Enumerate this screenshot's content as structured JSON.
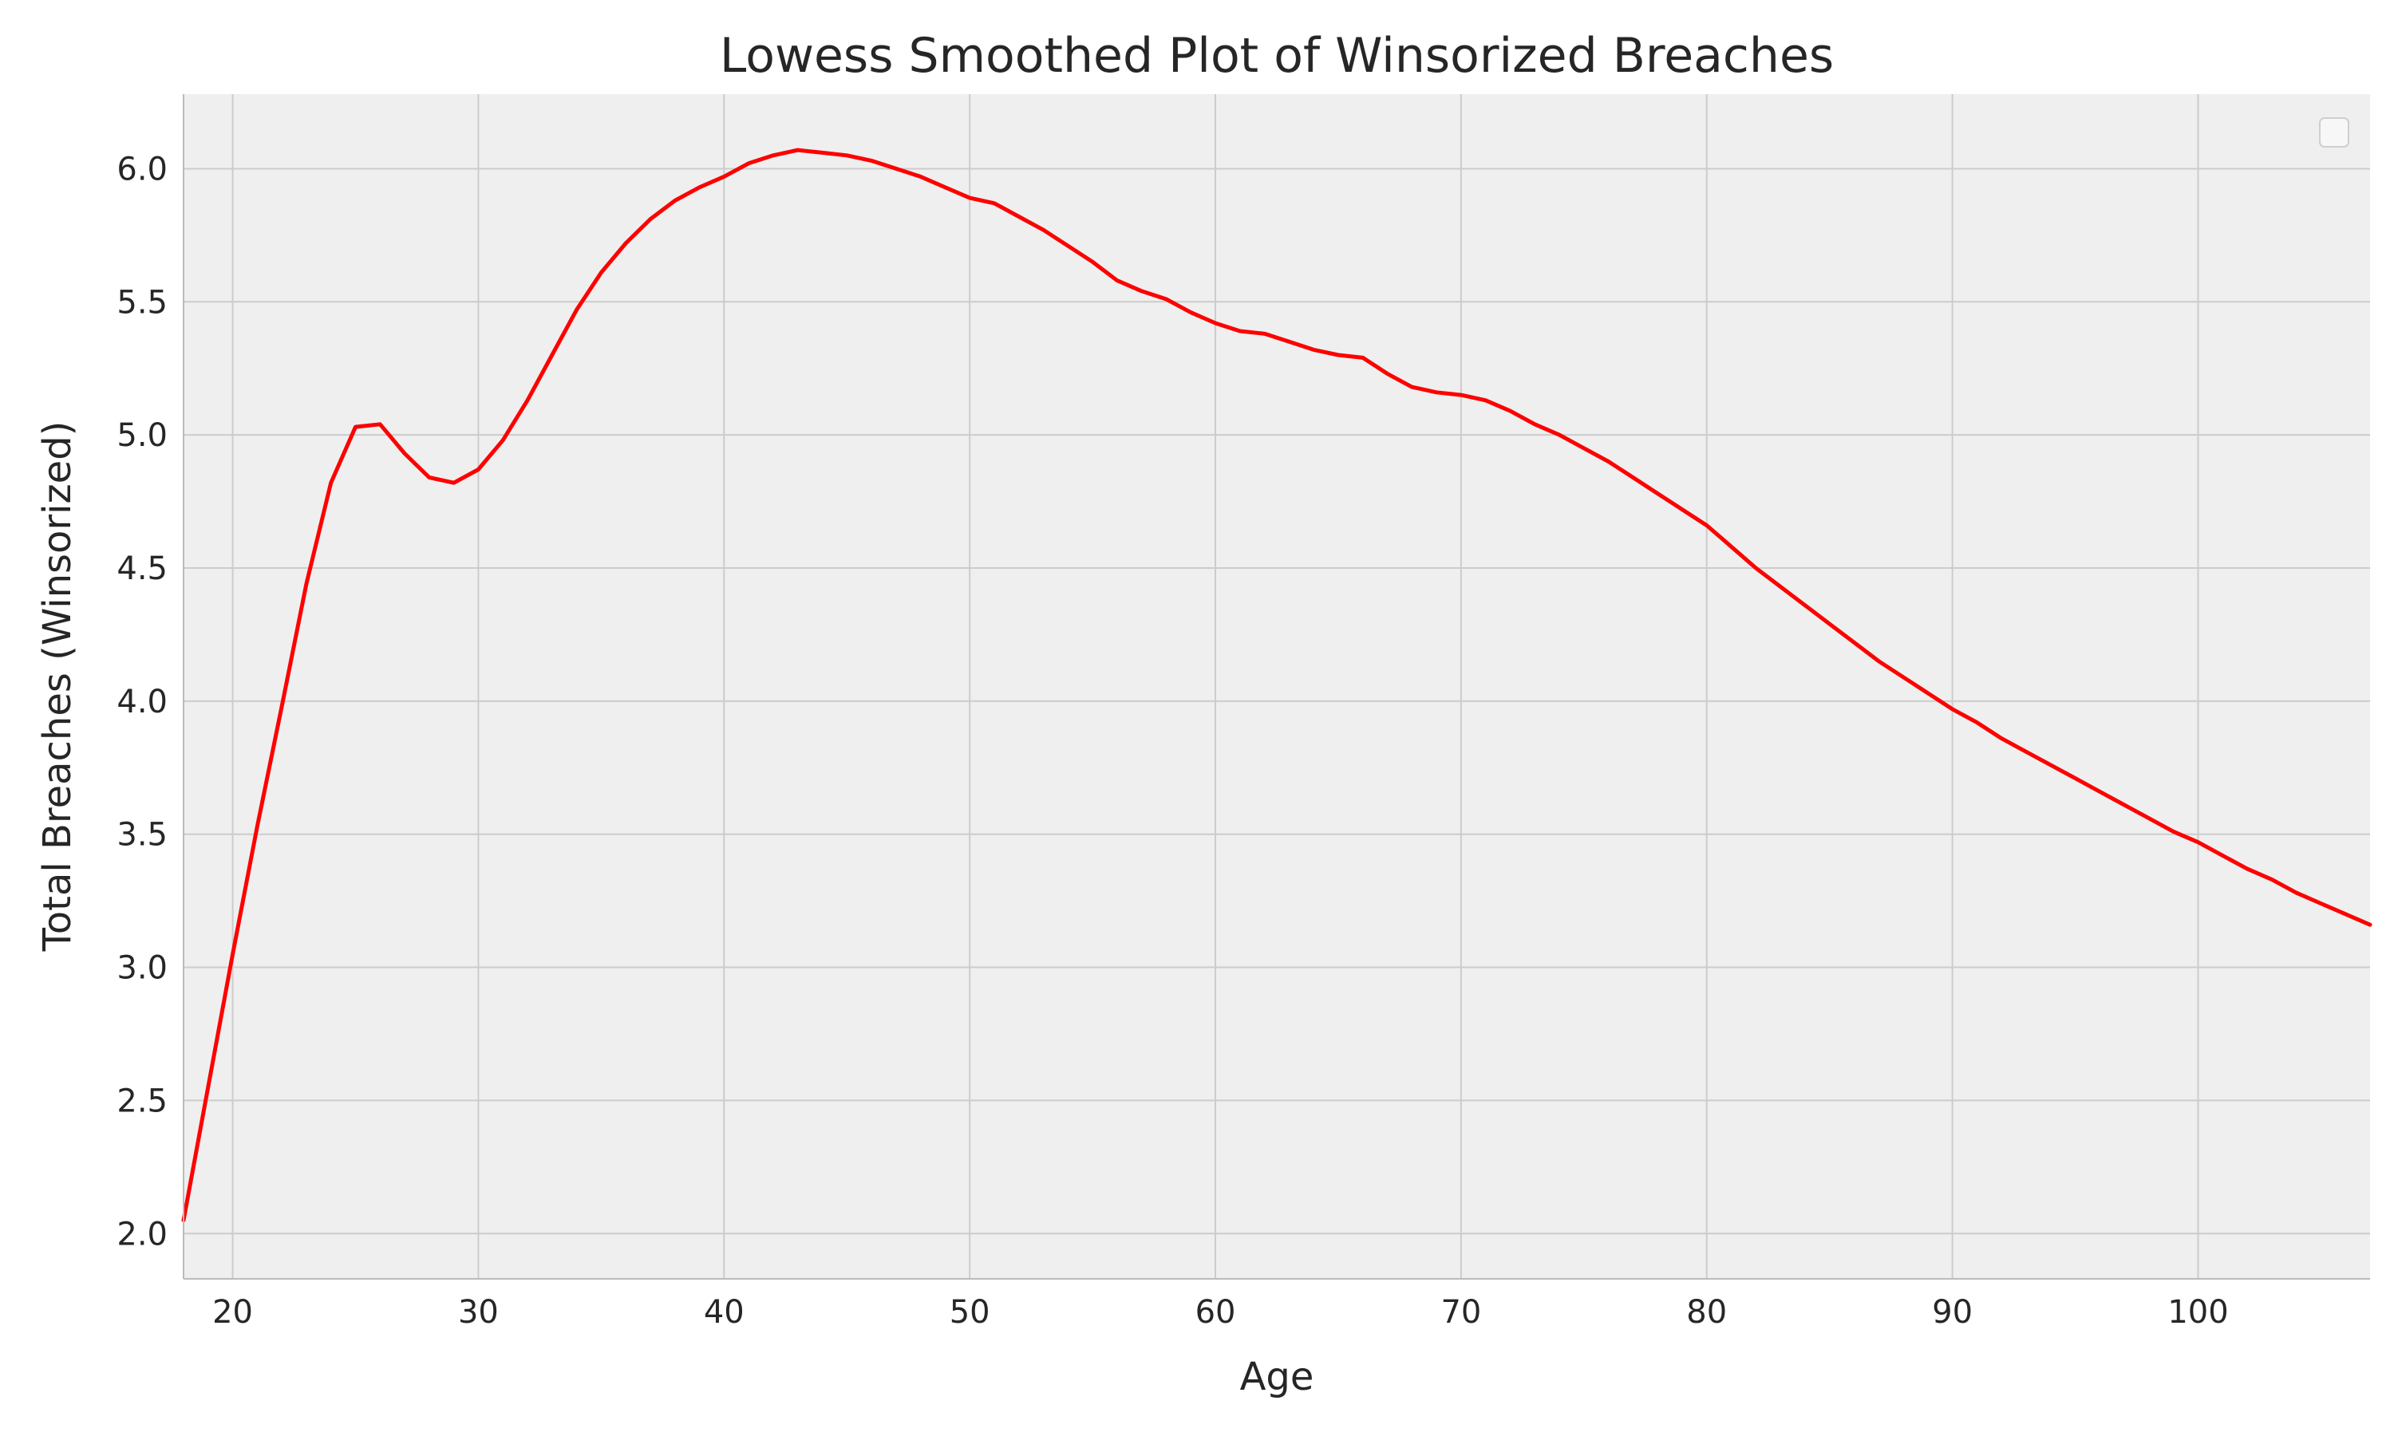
{
  "chart_data": {
    "type": "line",
    "title": "Lowess Smoothed Plot of Winsorized Breaches",
    "xlabel": "Age",
    "ylabel": "Total Breaches (Winsorized)",
    "xlim": [
      18,
      107
    ],
    "ylim": [
      1.83,
      6.28
    ],
    "x_ticks": [
      20,
      30,
      40,
      50,
      60,
      70,
      80,
      90,
      100
    ],
    "x_tick_labels": [
      "20",
      "30",
      "40",
      "50",
      "60",
      "70",
      "80",
      "90",
      "100"
    ],
    "y_ticks": [
      2.0,
      2.5,
      3.0,
      3.5,
      4.0,
      4.5,
      5.0,
      5.5,
      6.0
    ],
    "y_tick_labels": [
      "2.0",
      "2.5",
      "3.0",
      "3.5",
      "4.0",
      "4.5",
      "5.0",
      "5.5",
      "6.0"
    ],
    "grid": true,
    "legend": "top-right (empty)",
    "colors": {
      "line": "#ff0000",
      "plot_background": "#efefef",
      "grid": "#cccccc",
      "text": "#262626"
    },
    "series": [
      {
        "x": [
          18,
          19,
          20,
          21,
          22,
          23,
          24,
          25,
          26,
          27,
          28,
          29,
          30,
          31,
          32,
          33,
          34,
          35,
          36,
          37,
          38,
          39,
          40,
          41,
          42,
          43,
          44,
          45,
          46,
          47,
          48,
          49,
          50,
          51,
          52,
          53,
          54,
          55,
          56,
          57,
          58,
          59,
          60,
          61,
          62,
          63,
          64,
          65,
          66,
          67,
          68,
          69,
          70,
          71,
          72,
          73,
          74,
          75,
          76,
          77,
          78,
          79,
          80,
          81,
          82,
          83,
          84,
          85,
          86,
          87,
          88,
          89,
          90,
          91,
          92,
          93,
          94,
          95,
          96,
          97,
          98,
          99,
          100,
          101,
          102,
          103,
          104,
          105,
          106,
          107
        ],
        "y": [
          2.05,
          2.55,
          3.05,
          3.53,
          3.98,
          4.44,
          4.82,
          5.03,
          5.04,
          4.93,
          4.84,
          4.82,
          4.87,
          4.98,
          5.13,
          5.3,
          5.47,
          5.61,
          5.72,
          5.81,
          5.88,
          5.93,
          5.97,
          6.02,
          6.05,
          6.07,
          6.06,
          6.05,
          6.03,
          6.0,
          5.97,
          5.93,
          5.89,
          5.87,
          5.82,
          5.77,
          5.71,
          5.65,
          5.58,
          5.54,
          5.51,
          5.46,
          5.42,
          5.39,
          5.38,
          5.35,
          5.32,
          5.3,
          5.29,
          5.23,
          5.18,
          5.16,
          5.15,
          5.13,
          5.09,
          5.04,
          5.0,
          4.95,
          4.9,
          4.84,
          4.78,
          4.72,
          4.66,
          4.58,
          4.5,
          4.43,
          4.36,
          4.29,
          4.22,
          4.15,
          4.09,
          4.03,
          3.97,
          3.92,
          3.86,
          3.81,
          3.76,
          3.71,
          3.66,
          3.61,
          3.56,
          3.51,
          3.47,
          3.42,
          3.37,
          3.33,
          3.28,
          3.24,
          3.2,
          3.16
        ]
      }
    ]
  }
}
